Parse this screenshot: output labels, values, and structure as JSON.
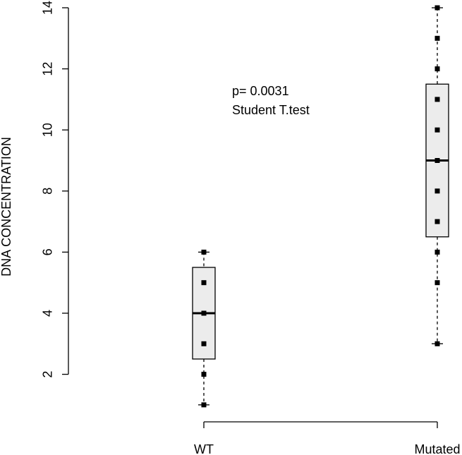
{
  "chart_data": {
    "type": "boxplot",
    "title": "",
    "xlabel": "",
    "ylabel": "DNA CONCENTRATION",
    "ylim": [
      1,
      14
    ],
    "yticks": [
      2,
      4,
      6,
      8,
      10,
      12,
      14
    ],
    "categories": [
      "WT",
      "Mutated"
    ],
    "boxes": [
      {
        "name": "WT",
        "min": 1,
        "q1": 2.5,
        "median": 4,
        "q3": 5.5,
        "max": 6,
        "points": [
          1,
          2,
          3,
          4,
          5,
          6
        ]
      },
      {
        "name": "Mutated",
        "min": 3,
        "q1": 6.5,
        "median": 9,
        "q3": 11.5,
        "max": 14,
        "points": [
          3,
          5,
          6,
          7,
          8,
          9,
          10,
          11,
          12,
          13,
          14
        ]
      }
    ],
    "annotation": [
      "p= 0.0031",
      "Student T.test"
    ],
    "box_fill": "#ececec",
    "grid": false
  }
}
